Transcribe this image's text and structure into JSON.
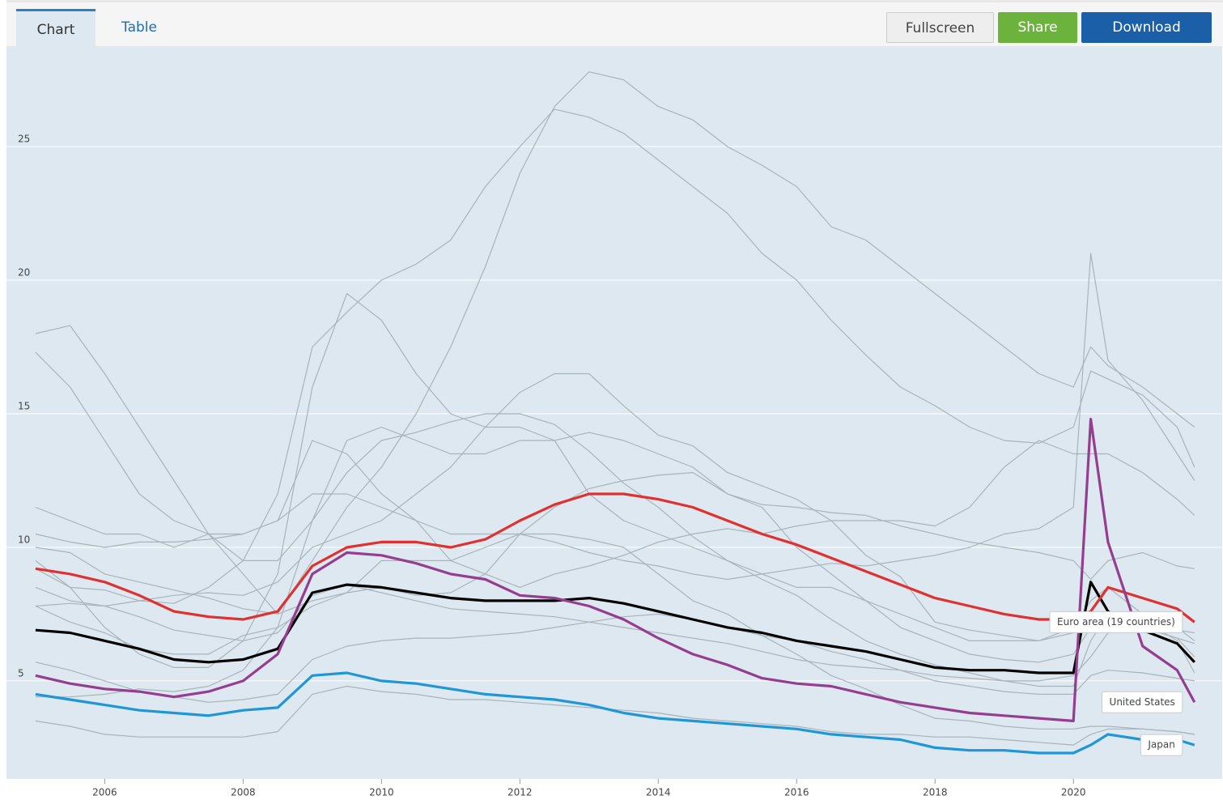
{
  "ui": {
    "tabs": [
      "Chart",
      "Table"
    ],
    "buttons": [
      "Fullscreen",
      "Share",
      "Download"
    ]
  },
  "chart_data": {
    "type": "line",
    "x": [
      2005,
      2005.5,
      2006,
      2006.5,
      2007,
      2007.5,
      2008,
      2008.5,
      2009,
      2009.5,
      2010,
      2010.5,
      2011,
      2011.5,
      2012,
      2012.5,
      2013,
      2013.5,
      2014,
      2014.5,
      2015,
      2015.5,
      2016,
      2016.5,
      2017,
      2017.5,
      2018,
      2018.5,
      2019,
      2019.5,
      2020,
      2020.25,
      2020.5,
      2021,
      2021.5,
      2021.75
    ],
    "xlim": [
      2004.58,
      2022.15
    ],
    "xticks": [
      2006,
      2008,
      2010,
      2012,
      2014,
      2016,
      2018,
      2020
    ],
    "ylim": [
      1.33,
      28.76
    ],
    "yticks": [
      5,
      10,
      15,
      20,
      25
    ],
    "grid": true,
    "series": [
      {
        "color": "#a9b3ba",
        "values": [
          9.2,
          8.5,
          8.4,
          8.0,
          7.9,
          8.5,
          9.5,
          12,
          17.5,
          18.8,
          20.0,
          20.6,
          21.5,
          23.5,
          25,
          26.4,
          26.1,
          25.5,
          24.5,
          23.5,
          22.5,
          21.0,
          20.0,
          18.5,
          17.2,
          16.0,
          15.3,
          14.5,
          14.0,
          13.9,
          14.5,
          16.6,
          16.3,
          15.7,
          14.5,
          13.0
        ]
      },
      {
        "color": "#a9b3ba",
        "values": [
          10.0,
          9.8,
          9.0,
          8.7,
          8.4,
          8.1,
          7.7,
          7.5,
          9.5,
          11.5,
          13,
          15,
          17.5,
          20.5,
          24,
          26.5,
          27.8,
          27.5,
          26.5,
          26,
          25,
          24.3,
          23.5,
          22,
          21.5,
          20.5,
          19.5,
          18.5,
          17.5,
          16.5,
          16,
          17.5,
          16.8,
          16,
          15,
          14.5
        ]
      },
      {
        "color": "#a9b3ba",
        "values": [
          9.5,
          8.5,
          7.0,
          6.0,
          5.5,
          5.5,
          6.5,
          9,
          16,
          19.5,
          18.5,
          16.5,
          15,
          14.5,
          14.5,
          14,
          12,
          11,
          10.5,
          10,
          9.5,
          9,
          8.5,
          8.5,
          8,
          7.5,
          7,
          6.5,
          6.5,
          6.5,
          7,
          8,
          8.5,
          7.5,
          7,
          6.5
        ]
      },
      {
        "color": "#a9b3ba",
        "values": [
          17.3,
          16,
          14,
          12,
          11,
          10.5,
          9.5,
          9.5,
          11,
          14,
          14.5,
          14,
          13.5,
          13.5,
          14,
          14,
          14.3,
          14,
          13.5,
          13,
          12,
          11.5,
          10,
          9,
          8,
          7,
          6.5,
          6,
          5.8,
          5.7,
          6,
          7,
          7.2,
          7,
          6.9,
          6.8
        ]
      },
      {
        "color": "#a9b3ba",
        "values": [
          18.0,
          18.3,
          16.5,
          14.5,
          12.5,
          10.5,
          9,
          7.5,
          8,
          8.3,
          9.5,
          9.5,
          9.5,
          10,
          10.5,
          10.5,
          10.3,
          10,
          9,
          8,
          7.5,
          6.7,
          6,
          5.2,
          4.7,
          4.1,
          3.6,
          3.5,
          3.3,
          3.2,
          3.2,
          3.3,
          3.3,
          3.2,
          3.1,
          3.0
        ]
      },
      {
        "color": "#a9b3ba",
        "values": [
          10.5,
          10.2,
          10,
          10.2,
          10.2,
          10.3,
          10.5,
          11,
          14,
          13.5,
          12,
          11,
          9.5,
          9,
          8.5,
          9.0,
          9.3,
          9.7,
          10.2,
          10.5,
          10.7,
          10.5,
          10.8,
          11,
          11,
          11,
          10.8,
          11.5,
          13,
          14,
          13.5,
          13.5,
          13.5,
          12.8,
          11.8,
          11.2
        ]
      },
      {
        "color": "#a9b3ba",
        "values": [
          11.5,
          11,
          10.5,
          10.5,
          10,
          10.5,
          10.5,
          11,
          12,
          12,
          11.5,
          11,
          10.5,
          10.5,
          10.5,
          10.2,
          9.8,
          9.5,
          9.3,
          9.0,
          8.8,
          9.0,
          9.2,
          9.4,
          9.3,
          9.5,
          9.7,
          10,
          10.5,
          10.7,
          11.5,
          21,
          17,
          15.5,
          13.5,
          12.5
        ]
      },
      {
        "color": "#a9b3ba",
        "values": [
          7.8,
          7.2,
          6.8,
          6.2,
          6.0,
          6.0,
          6.7,
          7.0,
          7.8,
          8.3,
          8.5,
          8.2,
          8.3,
          9.0,
          10.5,
          11.5,
          12.2,
          12.5,
          12.7,
          12.8,
          12.0,
          11.6,
          11.5,
          11.3,
          11.2,
          10.8,
          10.5,
          10.2,
          10.0,
          9.8,
          9.5,
          8.8,
          9.5,
          9.8,
          9.3,
          9.2
        ]
      },
      {
        "color": "#a9b3ba",
        "values": [
          4.4,
          4.4,
          4.5,
          4.7,
          4.6,
          4.8,
          5.4,
          7,
          11,
          12.8,
          14,
          14.3,
          14.7,
          15,
          15,
          14.6,
          13.6,
          12.4,
          11.5,
          10.4,
          9.5,
          8.8,
          8.2,
          7.3,
          6.5,
          6,
          5.6,
          5.3,
          5.0,
          4.8,
          4.8,
          6.5,
          7.5,
          7.3,
          6.5,
          5.3
        ]
      },
      {
        "color": "#a9b3ba",
        "values": [
          7.8,
          7.9,
          7.8,
          8.0,
          8.2,
          8.3,
          8.2,
          8.7,
          10,
          10.5,
          11,
          12,
          13,
          14.5,
          15.8,
          16.5,
          16.5,
          15.3,
          14.2,
          13.8,
          12.8,
          12.3,
          11.8,
          11.0,
          9.7,
          8.9,
          7.2,
          6.9,
          6.7,
          6.5,
          6.8,
          7.6,
          7.3,
          7.0,
          6.6,
          6.4
        ]
      },
      {
        "color": "#a9b3ba",
        "values": [
          3.5,
          3.3,
          3.0,
          2.9,
          2.9,
          2.9,
          2.9,
          3.1,
          4.5,
          4.8,
          4.6,
          4.5,
          4.3,
          4.3,
          4.2,
          4.1,
          4.0,
          3.9,
          3.8,
          3.6,
          3.5,
          3.4,
          3.3,
          3.1,
          3.0,
          3.0,
          2.9,
          2.9,
          2.8,
          2.7,
          2.6,
          3.0,
          3.2,
          3.2,
          3.1,
          3.0
        ]
      },
      {
        "color": "#a9b3ba",
        "values": [
          8.5,
          8.0,
          7.8,
          7.4,
          6.9,
          6.7,
          6.5,
          6.8,
          8.2,
          8.6,
          8.3,
          8.0,
          7.7,
          7.6,
          7.5,
          7.4,
          7.2,
          7.0,
          6.8,
          6.6,
          6.4,
          6.1,
          5.8,
          5.6,
          5.5,
          5.4,
          5.2,
          5.1,
          5.0,
          5.0,
          5.2,
          5.9,
          6.8,
          7.0,
          6.6,
          5.9
        ]
      },
      {
        "color": "#a9b3ba",
        "values": [
          5.7,
          5.4,
          5.0,
          4.6,
          4.4,
          4.2,
          4.3,
          4.5,
          5.8,
          6.3,
          6.5,
          6.6,
          6.6,
          6.7,
          6.8,
          7.0,
          7.2,
          7.4,
          7.5,
          7.3,
          7.0,
          6.7,
          6.5,
          6.1,
          5.8,
          5.4,
          5.0,
          4.8,
          4.6,
          4.5,
          4.5,
          5.2,
          5.4,
          5.3,
          5.1,
          5.0
        ]
      },
      {
        "color": "#000000",
        "values": [
          6.9,
          6.8,
          6.5,
          6.2,
          5.8,
          5.7,
          5.8,
          6.2,
          8.3,
          8.6,
          8.5,
          8.3,
          8.1,
          8.0,
          8.0,
          8.0,
          8.1,
          7.9,
          7.6,
          7.3,
          7.0,
          6.8,
          6.5,
          6.3,
          6.1,
          5.8,
          5.5,
          5.4,
          5.4,
          5.3,
          5.3,
          8.7,
          7.6,
          6.9,
          6.4,
          5.7
        ]
      },
      {
        "name": "Euro area (19 countries)",
        "color": "#e03131",
        "values": [
          9.2,
          9.0,
          8.7,
          8.2,
          7.6,
          7.4,
          7.3,
          7.6,
          9.3,
          10.0,
          10.2,
          10.2,
          10.0,
          10.3,
          11.0,
          11.6,
          12.0,
          12.0,
          11.8,
          11.5,
          11.0,
          10.5,
          10.1,
          9.6,
          9.1,
          8.6,
          8.1,
          7.8,
          7.5,
          7.3,
          7.3,
          7.6,
          8.5,
          8.1,
          7.7,
          7.2
        ]
      },
      {
        "name": "United States",
        "color": "#953d8f",
        "values": [
          5.2,
          4.9,
          4.7,
          4.6,
          4.4,
          4.6,
          5.0,
          6.0,
          9.0,
          9.8,
          9.7,
          9.4,
          9.0,
          8.8,
          8.2,
          8.1,
          7.8,
          7.3,
          6.6,
          6.0,
          5.6,
          5.1,
          4.9,
          4.8,
          4.5,
          4.2,
          4.0,
          3.8,
          3.7,
          3.6,
          3.5,
          14.8,
          10.2,
          6.3,
          5.4,
          4.2
        ]
      },
      {
        "name": "Japan",
        "color": "#1f96d6",
        "values": [
          4.5,
          4.3,
          4.1,
          3.9,
          3.8,
          3.7,
          3.9,
          4.0,
          5.2,
          5.3,
          5.0,
          4.9,
          4.7,
          4.5,
          4.4,
          4.3,
          4.1,
          3.8,
          3.6,
          3.5,
          3.4,
          3.3,
          3.2,
          3.0,
          2.9,
          2.8,
          2.5,
          2.4,
          2.4,
          2.3,
          2.3,
          2.6,
          3.0,
          2.8,
          2.8,
          2.6
        ]
      }
    ]
  }
}
